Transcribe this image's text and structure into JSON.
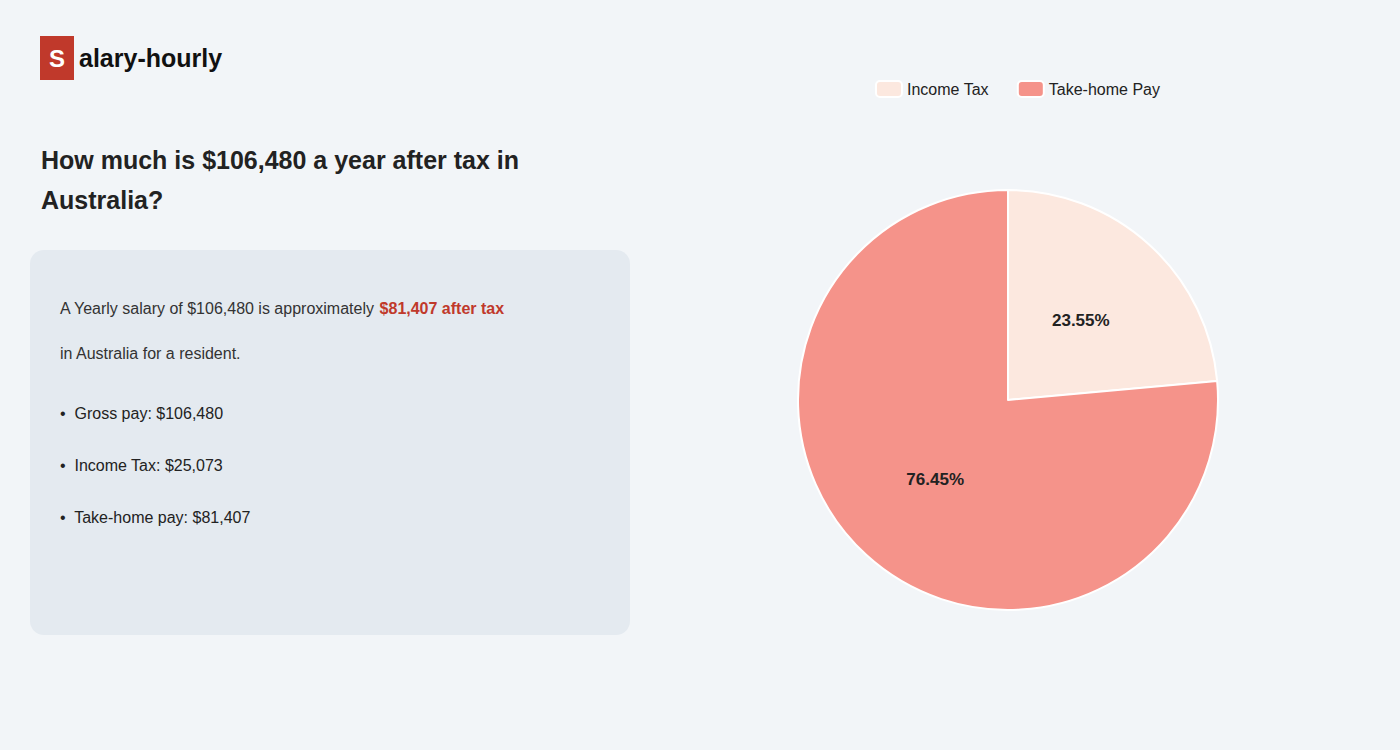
{
  "chart_data": {
    "type": "pie",
    "title": "How much is $106,480 a year after tax in\nAustralia?",
    "annotations": [
      "S",
      "alary-hourly",
      "A Yearly salary of $106,480 is approximately ",
      "$81,407 after tax",
      "in Australia for a resident.",
      "•  Gross pay: $106,480",
      "•  Income Tax: $25,073",
      "•  Take-home pay: $81,407"
    ],
    "categories": [
      "Income Tax",
      "Take-home Pay"
    ],
    "values": [
      23.55,
      76.45
    ],
    "value_labels": [
      "23.55%",
      "76.45%"
    ],
    "colors": [
      "#fce8df",
      "#f5938a"
    ],
    "data_labels": true,
    "legend": "top"
  }
}
